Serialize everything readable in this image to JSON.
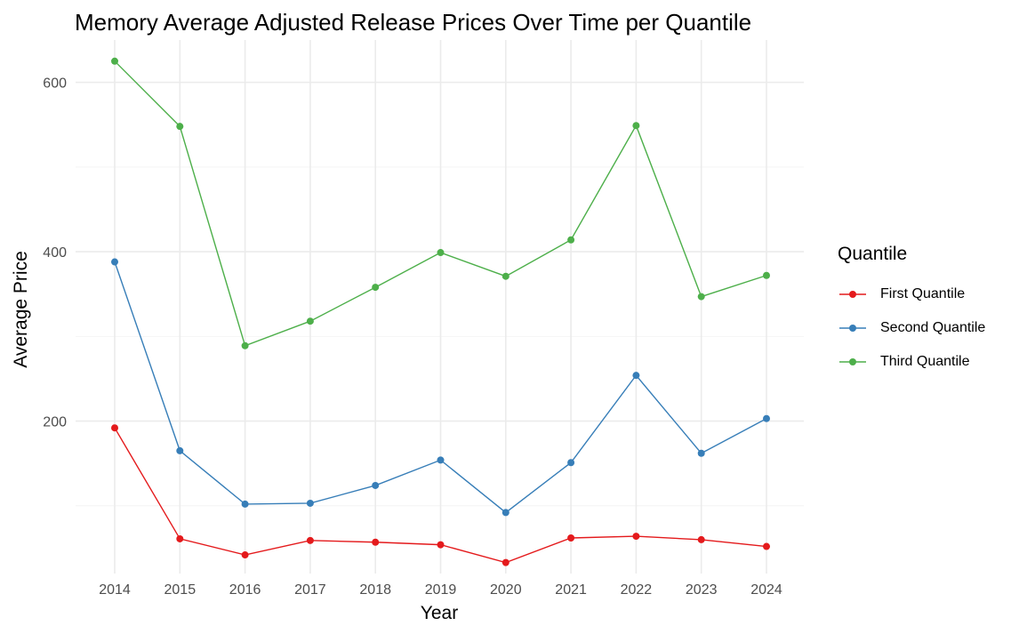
{
  "chart_data": {
    "type": "line",
    "title": "Memory Average Adjusted Release Prices Over Time per Quantile",
    "xlabel": "Year",
    "ylabel": "Average Price",
    "x": [
      2014,
      2015,
      2016,
      2017,
      2018,
      2019,
      2020,
      2021,
      2022,
      2023,
      2024
    ],
    "x_ticks": [
      "2014",
      "2015",
      "2016",
      "2017",
      "2018",
      "2019",
      "2020",
      "2021",
      "2022",
      "2023",
      "2024"
    ],
    "y_ticks": [
      "200",
      "400",
      "600"
    ],
    "ylim": [
      20,
      650
    ],
    "grid": true,
    "legend_title": "Quantile",
    "legend_position": "right",
    "series": [
      {
        "name": "First Quantile",
        "color": "#e41a1c",
        "values": [
          192,
          61,
          42,
          59,
          57,
          54,
          33,
          62,
          64,
          60,
          52
        ]
      },
      {
        "name": "Second Quantile",
        "color": "#377eb8",
        "values": [
          388,
          165,
          102,
          103,
          124,
          154,
          92,
          151,
          254,
          162,
          203
        ]
      },
      {
        "name": "Third Quantile",
        "color": "#4daf4a",
        "values": [
          625,
          548,
          289,
          318,
          358,
          399,
          371,
          414,
          549,
          347,
          372
        ]
      }
    ]
  }
}
